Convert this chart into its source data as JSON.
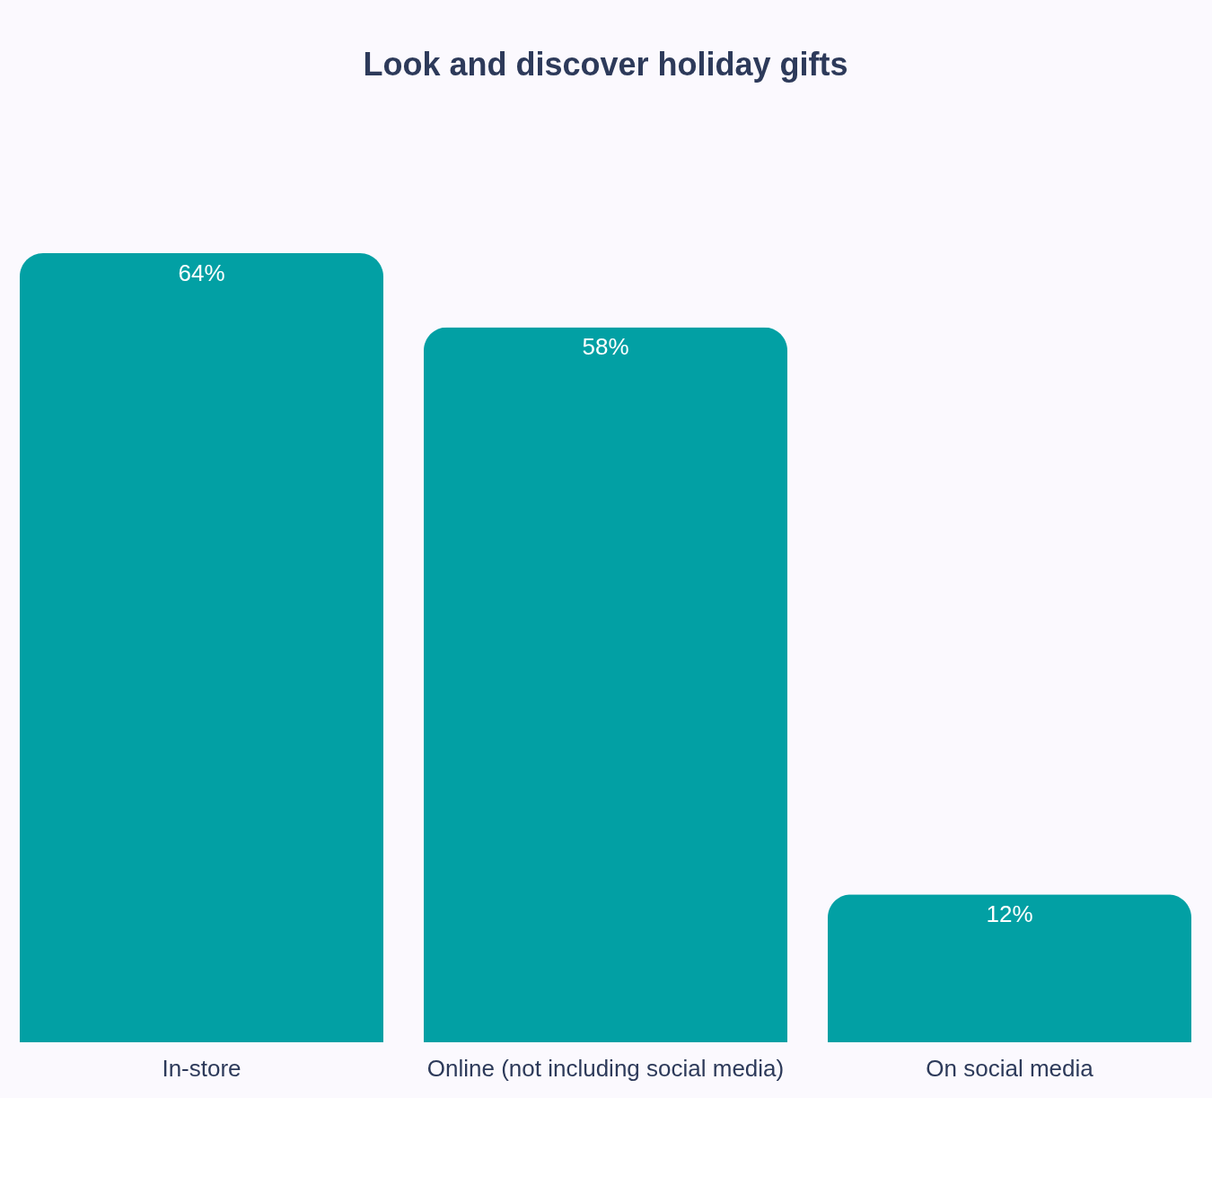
{
  "chart_data": {
    "type": "bar",
    "title": "Look and discover holiday gifts",
    "categories": [
      "In-store",
      "Online (not including social media)",
      "On social media"
    ],
    "values": [
      64,
      58,
      12
    ],
    "value_labels": [
      "64%",
      "58%",
      "12%"
    ],
    "color": "#02a0a4"
  }
}
